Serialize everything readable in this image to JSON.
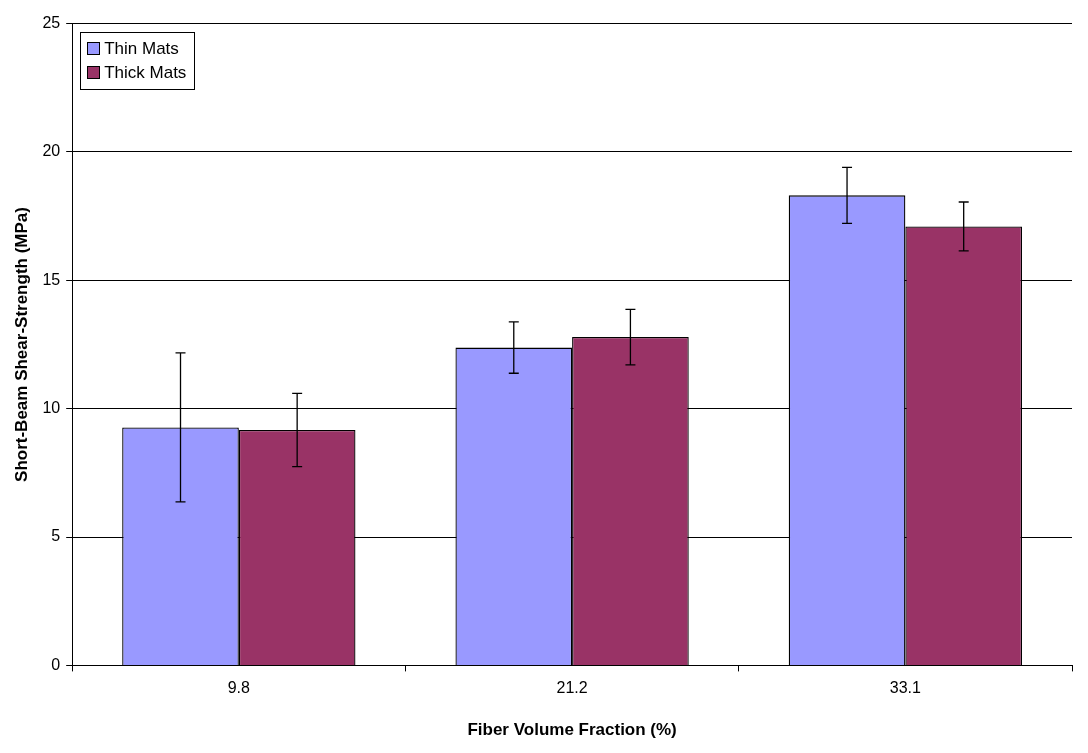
{
  "chart_data": {
    "type": "bar",
    "xlabel": "Fiber Volume Fraction (%)",
    "ylabel": "Short-Beam Shear-Strength (MPa)",
    "categories": [
      "9.8",
      "21.2",
      "33.1"
    ],
    "series": [
      {
        "name": "Thin Mats",
        "color": "#9999ff",
        "values": [
          9.27,
          12.38,
          18.31
        ],
        "errors": [
          2.9,
          1.0,
          1.09
        ]
      },
      {
        "name": "Thick Mats",
        "color": "#993366",
        "values": [
          9.17,
          12.79,
          17.1
        ],
        "errors": [
          1.43,
          1.08,
          0.95
        ]
      }
    ],
    "ylim": [
      0,
      25
    ],
    "yticks": [
      0,
      5,
      10,
      15,
      20,
      25
    ],
    "grid": "y",
    "legend": "top left"
  }
}
